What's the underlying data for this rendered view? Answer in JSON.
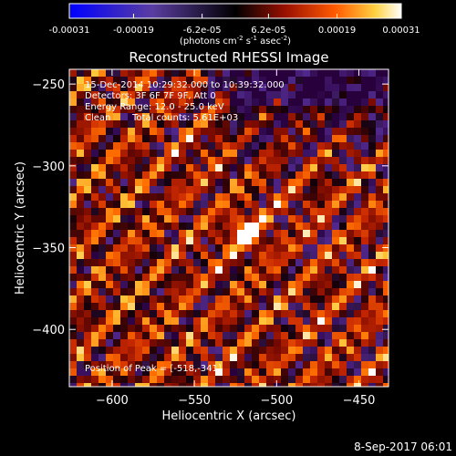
{
  "colorbar": {
    "tick_labels": [
      "-0.00031",
      "-0.00019",
      "-6.2e-05",
      "6.2e-05",
      "0.00019",
      "0.00031"
    ],
    "tick_values": [
      -0.00031,
      -0.00019,
      -6.2e-05,
      6.2e-05,
      0.00019,
      0.00031
    ],
    "range": [
      -0.00031,
      0.00031
    ],
    "units_prefix": "(photons cm",
    "units_exp1": "-2",
    "units_mid": " s",
    "units_exp2": "-1",
    "units_suffix": " asec",
    "units_exp3": "-2",
    "units_close": ")"
  },
  "chart_data": {
    "type": "heatmap",
    "title": "Reconstructed RHESSI Image",
    "xlabel": "Heliocentric X (arcsec)",
    "ylabel": "Heliocentric Y (arcsec)",
    "xlim": [
      -626,
      -432
    ],
    "ylim": [
      -435,
      -241
    ],
    "x_ticks": [
      -600,
      -550,
      -500,
      -450
    ],
    "y_ticks": [
      -250,
      -300,
      -350,
      -400
    ],
    "x_tick_labels": [
      "−600",
      "−550",
      "−500",
      "−450"
    ],
    "y_tick_labels": [
      "−250",
      "−300",
      "−350",
      "−400"
    ],
    "peak": [
      -518,
      -341
    ],
    "annotations": {
      "time": "15-Dec-2014 10:29:32.000 to 10:39:32.000",
      "detectors": "Detectors: 3F 6F 7F 9F, Att 0",
      "energy": "Energy Range: 12.0 - 25.0 keV",
      "method": "Clean",
      "counts": "Total counts: 5.61E+03",
      "peak_label": "Position of Peak = [-518,-341]"
    }
  },
  "footer": {
    "date": "8-Sep-2017 06:01"
  }
}
